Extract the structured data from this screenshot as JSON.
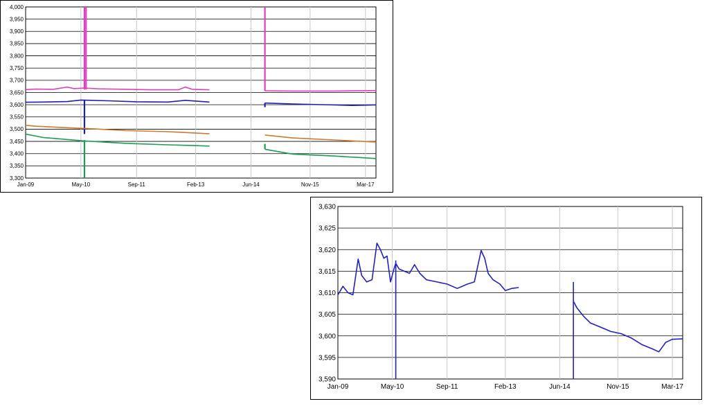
{
  "chart_data": [
    {
      "type": "line",
      "title": "",
      "xlabel": "",
      "ylabel": "",
      "x_ticks": [
        "Jan-09",
        "May-10",
        "Sep-11",
        "Feb-13",
        "Jun-14",
        "Nov-15",
        "Mar-17"
      ],
      "x_tick_dates": [
        "2009-01-01",
        "2010-05-01",
        "2011-09-01",
        "2013-02-01",
        "2014-06-01",
        "2015-11-01",
        "2017-03-01"
      ],
      "xlim": [
        "2009-01-01",
        "2017-06-01"
      ],
      "y_ticks": [
        "3,300",
        "3,350",
        "3,400",
        "3,450",
        "3,500",
        "3,550",
        "3,600",
        "3,650",
        "3,700",
        "3,750",
        "3,800",
        "3,850",
        "3,900",
        "3,950",
        "4,000"
      ],
      "ylim": [
        3300,
        4000
      ],
      "grid": "horizontal and vertical",
      "legend": "none",
      "series": [
        {
          "color": "#e040c0",
          "segments": [
            {
              "x": [
                "2009-01-01",
                "2009-04-01",
                "2009-09-01",
                "2010-01-01",
                "2010-03-01",
                "2010-06-01",
                "2010-10-01",
                "2011-06-01",
                "2012-01-01",
                "2012-09-01",
                "2012-11-01",
                "2013-01-01",
                "2013-06-01"
              ],
              "y": [
                3662,
                3664,
                3663,
                3672,
                3666,
                3668,
                3665,
                3663,
                3661,
                3661,
                3672,
                3663,
                3661
              ]
            },
            {
              "x": [
                "2014-10-01",
                "2015-06-01",
                "2016-06-01",
                "2017-06-01"
              ],
              "y": [
                3657,
                3656,
                3656,
                3658
              ]
            }
          ],
          "spikes": [
            {
              "x": "2010-06-01",
              "y_from": 3662,
              "y_to": 4000
            },
            {
              "x": "2010-06-15",
              "y_from": 3662,
              "y_to": 4000
            },
            {
              "x": "2014-10-01",
              "y_from": 3657,
              "y_to": 4000
            }
          ]
        },
        {
          "color": "#1f1fb0",
          "segments": [
            {
              "x": [
                "2009-01-01",
                "2009-06-01",
                "2010-01-01",
                "2010-05-01",
                "2011-01-01",
                "2011-09-01",
                "2012-06-01",
                "2012-11-01",
                "2013-06-01"
              ],
              "y": [
                3610,
                3611,
                3613,
                3619,
                3616,
                3612,
                3611,
                3618,
                3611
              ]
            },
            {
              "x": [
                "2014-10-01",
                "2015-06-01",
                "2016-06-01",
                "2016-11-01",
                "2017-06-01"
              ],
              "y": [
                3607,
                3603,
                3599,
                3597,
                3599
              ]
            }
          ],
          "spikes": [
            {
              "x": "2010-06-01",
              "y_from": 3617,
              "y_to": 3480
            },
            {
              "x": "2014-10-01",
              "y_from": 3607,
              "y_to": 3590
            }
          ]
        },
        {
          "color": "#d2782a",
          "segments": [
            {
              "x": [
                "2009-01-01",
                "2009-04-01",
                "2010-01-01",
                "2010-09-01",
                "2011-06-01",
                "2012-06-01",
                "2013-06-01"
              ],
              "y": [
                3516,
                3512,
                3506,
                3501,
                3494,
                3490,
                3481
              ]
            },
            {
              "x": [
                "2014-10-01",
                "2015-06-01",
                "2016-06-01",
                "2017-06-01"
              ],
              "y": [
                3476,
                3464,
                3456,
                3447
              ]
            }
          ],
          "spikes": []
        },
        {
          "color": "#1a9e50",
          "segments": [
            {
              "x": [
                "2009-01-01",
                "2009-06-01",
                "2010-06-01",
                "2011-06-01",
                "2012-06-01",
                "2013-06-01"
              ],
              "y": [
                3480,
                3466,
                3452,
                3442,
                3436,
                3431
              ]
            },
            {
              "x": [
                "2014-10-01",
                "2015-06-01",
                "2016-06-01",
                "2017-06-01"
              ],
              "y": [
                3418,
                3398,
                3390,
                3380
              ]
            }
          ],
          "spikes": [
            {
              "x": "2010-06-01",
              "y_from": 3455,
              "y_to": 3300
            },
            {
              "x": "2014-10-01",
              "y_from": 3418,
              "y_to": 3440
            }
          ]
        }
      ]
    },
    {
      "type": "line",
      "title": "",
      "xlabel": "",
      "ylabel": "",
      "x_ticks": [
        "Jan-09",
        "May-10",
        "Sep-11",
        "Feb-13",
        "Jun-14",
        "Nov-15",
        "Mar-17"
      ],
      "x_tick_dates": [
        "2009-01-01",
        "2010-05-01",
        "2011-09-01",
        "2013-02-01",
        "2014-06-01",
        "2015-11-01",
        "2017-03-01"
      ],
      "xlim": [
        "2009-01-01",
        "2017-06-01"
      ],
      "y_ticks": [
        "3,590",
        "3,595",
        "3,600",
        "3,605",
        "3,610",
        "3,615",
        "3,620",
        "3,625",
        "3,630"
      ],
      "ylim": [
        3590,
        3630
      ],
      "grid": "horizontal and vertical",
      "legend": "none",
      "series": [
        {
          "color": "#2020c8",
          "segments": [
            {
              "x": [
                "2009-01-01",
                "2009-02-15",
                "2009-04-01",
                "2009-05-15",
                "2009-07-01",
                "2009-08-01",
                "2009-09-15",
                "2009-11-01",
                "2009-12-15",
                "2010-01-15",
                "2010-02-15",
                "2010-03-15",
                "2010-04-15",
                "2010-05-15",
                "2010-06-01",
                "2010-07-01",
                "2010-08-15",
                "2010-10-01",
                "2010-11-15",
                "2011-01-01",
                "2011-03-01",
                "2011-06-01",
                "2011-09-01",
                "2011-12-01",
                "2012-03-01",
                "2012-05-01",
                "2012-07-01",
                "2012-08-01",
                "2012-09-01",
                "2012-10-15",
                "2012-12-15",
                "2013-02-01",
                "2013-04-01",
                "2013-06-01"
              ],
              "y": [
                3609.5,
                3611.5,
                3610.0,
                3609.5,
                3617.8,
                3614.0,
                3612.5,
                3613.0,
                3621.5,
                3620.0,
                3618.0,
                3618.5,
                3612.5,
                3615.5,
                3616.8,
                3615.5,
                3615.0,
                3614.5,
                3616.5,
                3614.5,
                3613.0,
                3612.5,
                3612.0,
                3611.0,
                3612.0,
                3612.5,
                3619.8,
                3618.0,
                3614.5,
                3613.0,
                3612.0,
                3610.5,
                3611.0,
                3611.2
              ]
            },
            {
              "x": [
                "2014-10-01",
                "2014-11-01",
                "2015-01-01",
                "2015-03-01",
                "2015-06-01",
                "2015-09-01",
                "2015-12-01",
                "2016-03-01",
                "2016-06-01",
                "2016-09-01",
                "2016-11-01",
                "2017-01-01",
                "2017-03-01",
                "2017-06-01"
              ],
              "y": [
                3608.0,
                3606.5,
                3604.5,
                3603.0,
                3602.0,
                3601.0,
                3600.5,
                3599.5,
                3598.0,
                3597.0,
                3596.3,
                3598.5,
                3599.2,
                3599.3
              ]
            }
          ],
          "spikes": [
            {
              "x": "2010-06-01",
              "y_from": 3617.5,
              "y_to": 3590
            },
            {
              "x": "2014-10-01",
              "y_from": 3590,
              "y_to": 3612.5
            }
          ]
        }
      ]
    }
  ]
}
